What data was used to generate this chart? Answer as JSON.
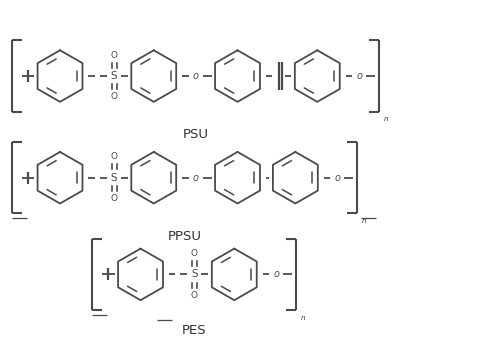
{
  "background": "#ffffff",
  "line_color": "#4a4a4a",
  "text_color": "#333333",
  "PSU_label": "PSU",
  "PPSU_label": "PPSU",
  "PES_label": "PES",
  "n_label": "n"
}
